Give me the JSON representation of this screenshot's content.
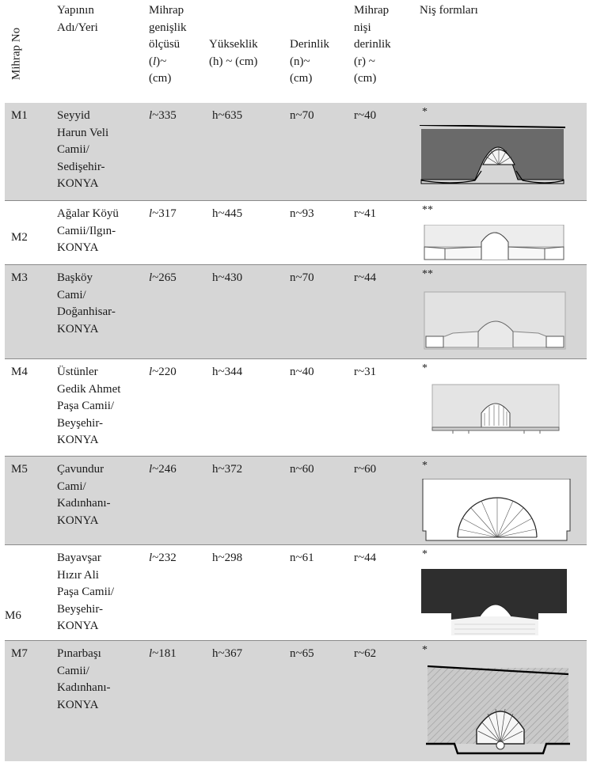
{
  "headers": {
    "no": "Mihrap No",
    "name": "Yapının\nAdı/Yeri",
    "width": "Mihrap\ngenişlik\nölçüsü\n(l)~\n(cm)",
    "height": "Yükseklik\n(h) ~ (cm)",
    "depth": "Derinlik\n(n)~\n(cm)",
    "niche_depth": "Mihrap\nnişi\nderinlik\n(r) ~\n(cm)",
    "forms": "Niş formları"
  },
  "rows": [
    {
      "no": "M1",
      "name": "Seyyid\nHarun Veli\nCamii/\nSedişehir-\nKONYA",
      "l": "l~335",
      "h": "h~635",
      "n": "n~70",
      "r": "r~40",
      "mark": "*"
    },
    {
      "no": "M2",
      "name": "Ağalar Köyü\nCamii/Ilgın-\nKONYA",
      "l": "l~317",
      "h": "h~445",
      "n": "n~93",
      "r": "r~41",
      "mark": "**"
    },
    {
      "no": "M3",
      "name": "Başköy\nCami/\nDoğanhisar-\nKONYA",
      "l": "l~265",
      "h": "h~430",
      "n": "n~70",
      "r": "r~44",
      "mark": "**"
    },
    {
      "no": "M4",
      "name": "Üstünler\nGedik Ahmet\nPaşa Camii/\nBeyşehir-\nKONYA",
      "l": "l~220",
      "h": "h~344",
      "n": "n~40",
      "r": "r~31",
      "mark": "*"
    },
    {
      "no": "M5",
      "name": "Çavundur\nCami/\nKadınhanı-\nKONYA",
      "l": "l~246",
      "h": "h~372",
      "n": "n~60",
      "r": "r~60",
      "mark": "*"
    },
    {
      "no": "M6",
      "name": "Bayavşar\nHızır Ali\nPaşa Camii/\nBeyşehir-\nKONYA",
      "l": "l~232",
      "h": "h~298",
      "n": "n~61",
      "r": "r~44",
      "mark": "*"
    },
    {
      "no": "M7",
      "name": "Pınarbaşı\nCamii/\nKadınhanı-\nKONYA",
      "l": "l~181",
      "h": "h~367",
      "n": "n~65",
      "r": "r~62",
      "mark": "*"
    }
  ]
}
